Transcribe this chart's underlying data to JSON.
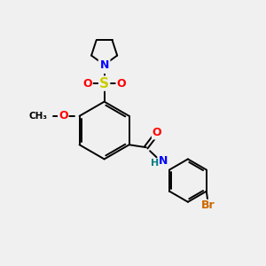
{
  "background_color": "#f0f0f0",
  "bond_color": "#000000",
  "atom_colors": {
    "N": "#0000ff",
    "O": "#ff0000",
    "S": "#cccc00",
    "Br": "#cc6600",
    "C": "#000000",
    "H": "#008080"
  },
  "figsize": [
    3.0,
    3.0
  ],
  "dpi": 100
}
